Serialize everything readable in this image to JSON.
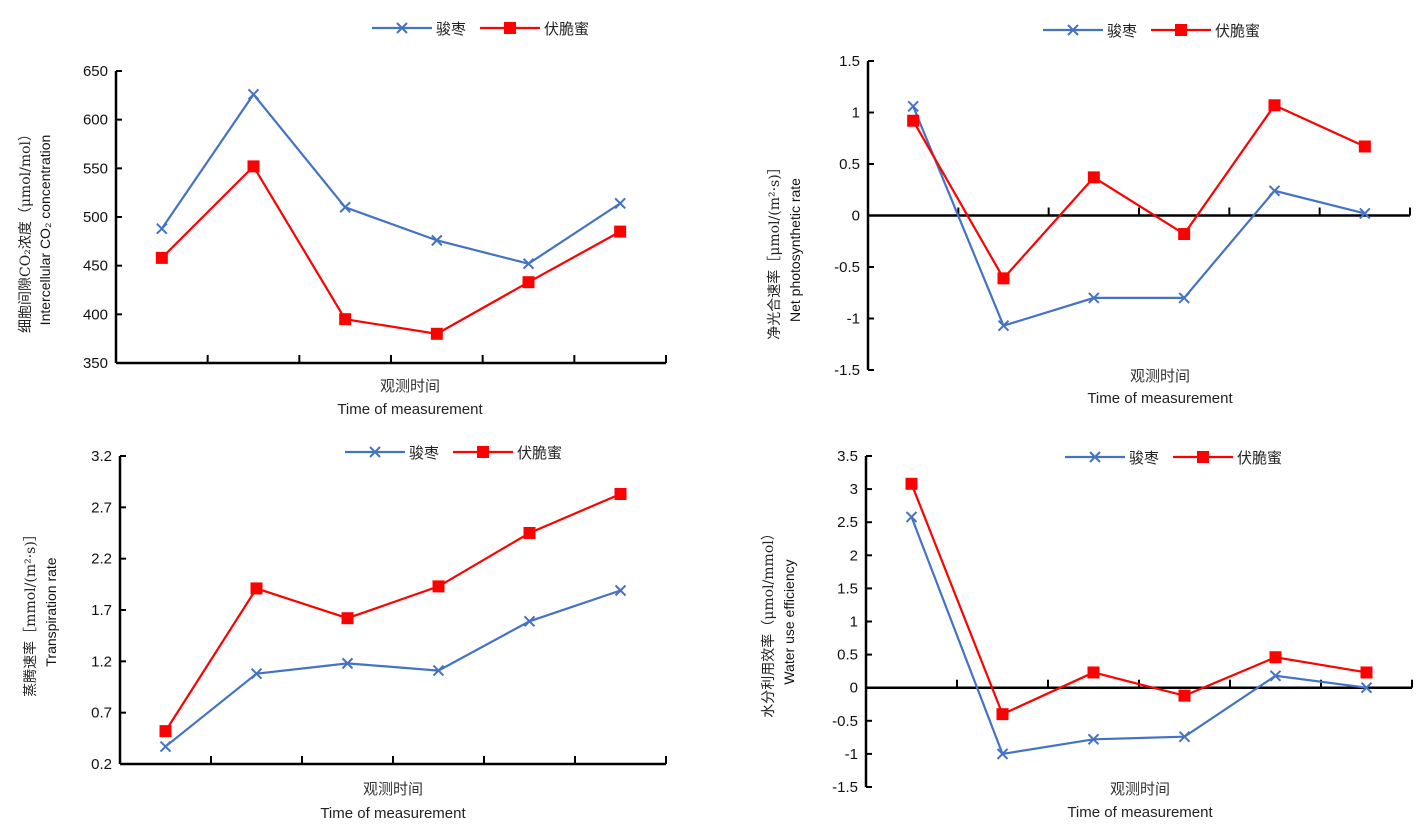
{
  "chart_data": [
    {
      "type": "line",
      "id": "intercellular-co2",
      "title": "",
      "ylabel_cn": "细胞间隙CO₂浓度（μmol/mol）",
      "ylabel_en": "Intercellular CO₂ concentration",
      "xlabel_cn": "观测时间",
      "xlabel_en": "Time of measurement",
      "ylim": [
        350,
        650
      ],
      "yticks": [
        350,
        400,
        450,
        500,
        550,
        600,
        650
      ],
      "ytick_labels": [
        "350",
        "400",
        "450",
        "500",
        "550",
        "600",
        "650"
      ],
      "categories": [
        "",
        "",
        "",
        "",
        "",
        ""
      ],
      "legend_position": "top-center",
      "grid": false,
      "series": [
        {
          "name": "骏枣",
          "color": "#4472C4",
          "marker": "x",
          "values": [
            488,
            626,
            510,
            476,
            452,
            514
          ]
        },
        {
          "name": "伏脆蜜",
          "color": "#FF0000",
          "marker": "square",
          "values": [
            458,
            552,
            395,
            380,
            433,
            485
          ]
        }
      ]
    },
    {
      "type": "line",
      "id": "net-photosynthetic-rate",
      "title": "",
      "ylabel_cn": "净光合速率［μmol/(m²·s)］",
      "ylabel_en": "Net photosynthetic rate",
      "xlabel_cn": "观测时间",
      "xlabel_en": "Time of measurement",
      "ylim": [
        -1.5,
        1.5
      ],
      "yticks": [
        -1.5,
        -1,
        -0.5,
        0,
        0.5,
        1,
        1.5
      ],
      "ytick_labels": [
        "-1.5",
        "-1",
        "-0.5",
        "0",
        "0.5",
        "1",
        "1.5"
      ],
      "categories": [
        "",
        "",
        "",
        "",
        "",
        ""
      ],
      "legend_position": "top-center",
      "grid": false,
      "series": [
        {
          "name": "骏枣",
          "color": "#4472C4",
          "marker": "x",
          "values": [
            1.06,
            -1.07,
            -0.8,
            -0.8,
            0.24,
            0.02
          ]
        },
        {
          "name": "伏脆蜜",
          "color": "#FF0000",
          "marker": "square",
          "values": [
            0.92,
            -0.61,
            0.37,
            -0.18,
            1.07,
            0.67
          ]
        }
      ]
    },
    {
      "type": "line",
      "id": "transpiration-rate",
      "title": "",
      "ylabel_cn": "蒸腾速率［mmol/(m²·s)］",
      "ylabel_en": "Transpiration rate",
      "xlabel_cn": "观测时间",
      "xlabel_en": "Time of measurement",
      "ylim": [
        0.2,
        3.2
      ],
      "yticks": [
        0.2,
        0.7,
        1.2,
        1.7,
        2.2,
        2.7,
        3.2
      ],
      "ytick_labels": [
        "0.2",
        "0.7",
        "1.2",
        "1.7",
        "2.2",
        "2.7",
        "3.2"
      ],
      "categories": [
        "",
        "",
        "",
        "",
        "",
        ""
      ],
      "legend_position": "top-center",
      "grid": false,
      "series": [
        {
          "name": "骏枣",
          "color": "#4472C4",
          "marker": "x",
          "values": [
            0.37,
            1.08,
            1.18,
            1.11,
            1.59,
            1.89
          ]
        },
        {
          "name": "伏脆蜜",
          "color": "#FF0000",
          "marker": "square",
          "values": [
            0.52,
            1.91,
            1.62,
            1.93,
            2.45,
            2.83
          ]
        }
      ]
    },
    {
      "type": "line",
      "id": "water-use-efficiency",
      "title": "",
      "ylabel_cn": "水分利用效率（μmol/mmol）",
      "ylabel_en": "Water use efficiency",
      "xlabel_cn": "观测时间",
      "xlabel_en": "Time of measurement",
      "ylim": [
        -1.5,
        3.5
      ],
      "yticks": [
        -1.5,
        -1,
        -0.5,
        0,
        0.5,
        1,
        1.5,
        2,
        2.5,
        3,
        3.5
      ],
      "ytick_labels": [
        "-1.5",
        "-1",
        "-0.5",
        "0",
        "0.5",
        "1",
        "1.5",
        "2",
        "2.5",
        "3",
        "3.5"
      ],
      "categories": [
        "",
        "",
        "",
        "",
        "",
        ""
      ],
      "legend_position": "top-right",
      "grid": false,
      "series": [
        {
          "name": "骏枣",
          "color": "#4472C4",
          "marker": "x",
          "values": [
            2.58,
            -1.0,
            -0.78,
            -0.74,
            0.18,
            0.0
          ]
        },
        {
          "name": "伏脆蜜",
          "color": "#FF0000",
          "marker": "square",
          "values": [
            3.08,
            -0.4,
            0.23,
            -0.12,
            0.46,
            0.23
          ]
        }
      ]
    }
  ]
}
